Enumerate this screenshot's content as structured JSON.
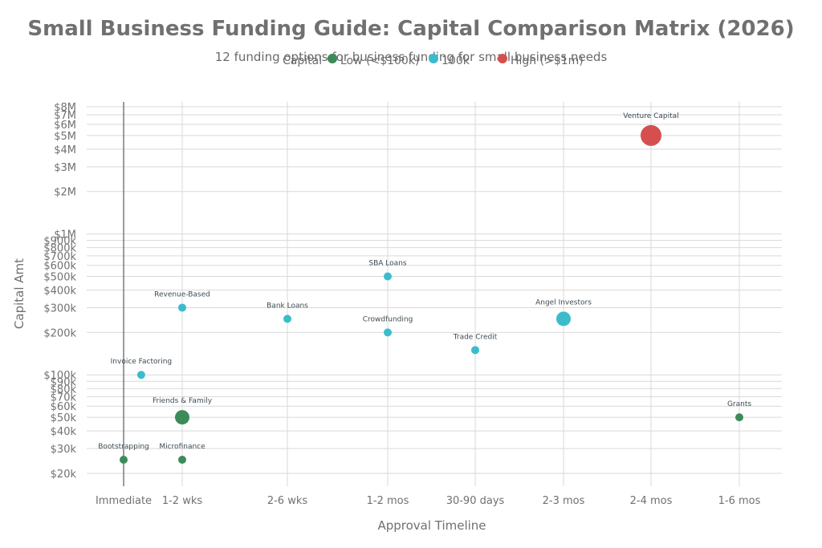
{
  "chart_data": {
    "type": "scatter",
    "title": "Small Business Funding Guide: Capital Comparison Matrix (2026)",
    "subtitle": "12 funding options for business funding for small business needs",
    "xlabel": "Approval Timeline",
    "ylabel": "Capital Amt",
    "x_categories": [
      "Immediate",
      "1-2 wks",
      "2-6 wks",
      "1-2 mos",
      "30-90 days",
      "2-3 mos",
      "2-4 mos",
      "1-6 mos"
    ],
    "y_scale": "log",
    "ylim": [
      15000,
      8500000
    ],
    "y_ticks": [
      {
        "value": 20000,
        "label": "$20k"
      },
      {
        "value": 30000,
        "label": "$30k"
      },
      {
        "value": 40000,
        "label": "$40k"
      },
      {
        "value": 50000,
        "label": "$50k"
      },
      {
        "value": 60000,
        "label": "$60k"
      },
      {
        "value": 70000,
        "label": "$70k"
      },
      {
        "value": 80000,
        "label": "$80k"
      },
      {
        "value": 90000,
        "label": "$90k"
      },
      {
        "value": 100000,
        "label": "$100k"
      },
      {
        "value": 200000,
        "label": "$200k"
      },
      {
        "value": 300000,
        "label": "$300k"
      },
      {
        "value": 400000,
        "label": "$400k"
      },
      {
        "value": 500000,
        "label": "$500k"
      },
      {
        "value": 600000,
        "label": "$600k"
      },
      {
        "value": 700000,
        "label": "$700k"
      },
      {
        "value": 800000,
        "label": "$800k"
      },
      {
        "value": 900000,
        "label": "$900k"
      },
      {
        "value": 1000000,
        "label": "$1M"
      },
      {
        "value": 2000000,
        "label": "$2M"
      },
      {
        "value": 3000000,
        "label": "$3M"
      },
      {
        "value": 4000000,
        "label": "$4M"
      },
      {
        "value": 5000000,
        "label": "$5M"
      },
      {
        "value": 6000000,
        "label": "$6M"
      },
      {
        "value": 7000000,
        "label": "$7M"
      },
      {
        "value": 8000000,
        "label": "$8M"
      }
    ],
    "legend": {
      "title": "Capital",
      "placement": "top-center",
      "items": [
        {
          "name": "Low (<$100k)",
          "color": "#3d8a5a"
        },
        {
          "name": "100k",
          "color": "#3bbccc"
        },
        {
          "name": "High (>$1m)",
          "color": "#d64f4f"
        }
      ]
    },
    "points": [
      {
        "label": "Bootstrapping",
        "x": "Immediate",
        "x_offset": 0.0,
        "y": 25000,
        "group": "Low (<$100k)",
        "size": "small"
      },
      {
        "label": "Invoice Factoring",
        "x": "Immediate",
        "x_offset": 0.3,
        "y": 100000,
        "group": "100k",
        "size": "small"
      },
      {
        "label": "Microfinance",
        "x": "1-2 wks",
        "x_offset": 0.0,
        "y": 25000,
        "group": "Low (<$100k)",
        "size": "small"
      },
      {
        "label": "Friends & Family",
        "x": "1-2 wks",
        "x_offset": 0.0,
        "y": 50000,
        "group": "Low (<$100k)",
        "size": "medium"
      },
      {
        "label": "Revenue-Based",
        "x": "1-2 wks",
        "x_offset": 0.0,
        "y": 300000,
        "group": "100k",
        "size": "small"
      },
      {
        "label": "Bank Loans",
        "x": "2-6 wks",
        "x_offset": 0.0,
        "y": 250000,
        "group": "100k",
        "size": "small"
      },
      {
        "label": "Crowdfunding",
        "x": "1-2 mos",
        "x_offset": 0.0,
        "y": 200000,
        "group": "100k",
        "size": "small"
      },
      {
        "label": "SBA Loans",
        "x": "1-2 mos",
        "x_offset": 0.0,
        "y": 500000,
        "group": "100k",
        "size": "small"
      },
      {
        "label": "Trade Credit",
        "x": "30-90 days",
        "x_offset": 0.0,
        "y": 150000,
        "group": "100k",
        "size": "small"
      },
      {
        "label": "Angel Investors",
        "x": "2-3 mos",
        "x_offset": 0.0,
        "y": 250000,
        "group": "100k",
        "size": "medium"
      },
      {
        "label": "Venture Capital",
        "x": "2-4 mos",
        "x_offset": 0.0,
        "y": 5000000,
        "group": "High (>$1m)",
        "size": "large"
      },
      {
        "label": "Grants",
        "x": "1-6 mos",
        "x_offset": 0.0,
        "y": 50000,
        "group": "Low (<$100k)",
        "size": "small"
      }
    ],
    "grid": true
  }
}
